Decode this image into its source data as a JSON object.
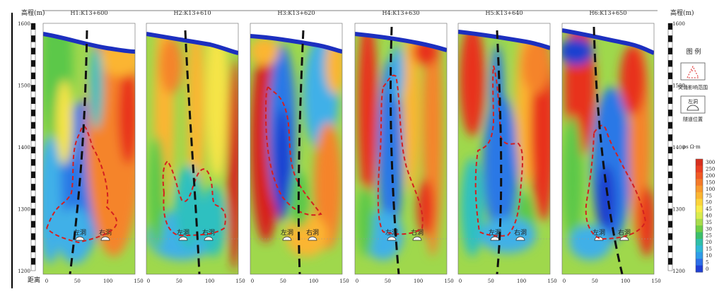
{
  "chart_data": {
    "type": "heatmap",
    "panels": [
      {
        "title": "H1:K13+600"
      },
      {
        "title": "H2:K13+610"
      },
      {
        "title": "H3:K13+620"
      },
      {
        "title": "H4:K13+630"
      },
      {
        "title": "H5:K13+640"
      },
      {
        "title": "H6:K13+650"
      }
    ],
    "ylabel_left": "高程(m)",
    "ylabel_right": "高程(m)",
    "xlabel": "距离",
    "ylim": [
      1200,
      1600
    ],
    "yticks": [
      "1600",
      "1500",
      "1400",
      "1300",
      "1200"
    ],
    "xlim": [
      0,
      150
    ],
    "xticks": [
      "0",
      "50",
      "100",
      "150"
    ],
    "tunnels": {
      "left": "左洞",
      "right": "右洞"
    },
    "legend": {
      "title": "图  例",
      "items": [
        {
          "symbol": "red-dashed-polygon",
          "label": "突涌影响范围"
        },
        {
          "symbol": "tunnel-arch",
          "inner": "左洞",
          "label": "隧道位置"
        }
      ]
    },
    "colorbar": {
      "unit": "ρs   Ω·m",
      "ticks": [
        "300",
        "250",
        "200",
        "150",
        "100",
        "75",
        "50",
        "45",
        "40",
        "35",
        "30",
        "25",
        "20",
        "15",
        "10",
        "5",
        "0"
      ],
      "colors": [
        "#d7301f",
        "#ea3f22",
        "#f15a25",
        "#f47a2a",
        "#f89a2e",
        "#fbb532",
        "#fcd43b",
        "#f8ec4a",
        "#d9ec4e",
        "#a8dc4c",
        "#6fcf47",
        "#3cbf6b",
        "#2fbfa8",
        "#2fb8d6",
        "#2f9ce8",
        "#2d6fe8",
        "#1f3fd6"
      ]
    }
  }
}
